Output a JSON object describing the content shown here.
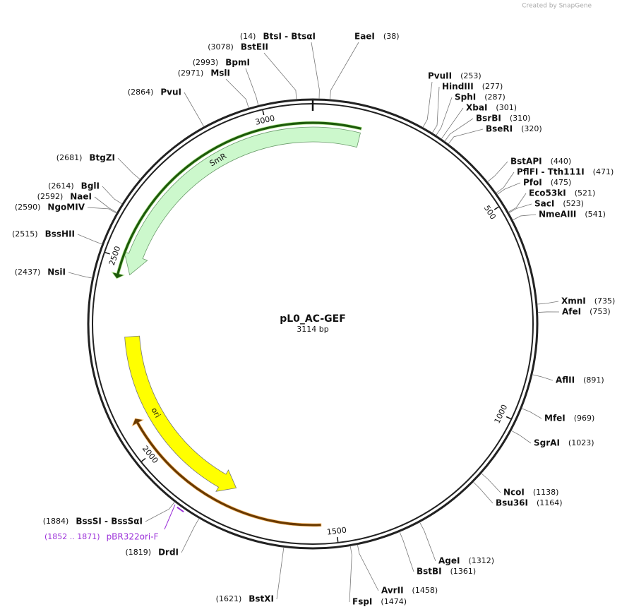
{
  "credit": "Created by SnapGene",
  "map": {
    "title": "pL0_AC-GEF",
    "size": "3114 bp",
    "length": 3114,
    "ticks": [
      500,
      1000,
      1500,
      2000,
      2500,
      3000
    ],
    "features": [
      {
        "name": "SmR"
      },
      {
        "name": "ori"
      }
    ],
    "primer": {
      "range": "(1852 .. 1871)",
      "name": "pBR322ori-F"
    },
    "enzymes": [
      {
        "name": "BtsI - BtsαI",
        "position": "(14)"
      },
      {
        "name": "EaeI",
        "position": "(38)"
      },
      {
        "name": "BstEII",
        "position": "(3078)"
      },
      {
        "name": "BpmI",
        "position": "(2993)"
      },
      {
        "name": "MslI",
        "position": "(2971)"
      },
      {
        "name": "PvuI",
        "position": "(2864)"
      },
      {
        "name": "PvuII",
        "position": "(253)"
      },
      {
        "name": "HindIII",
        "position": "(277)"
      },
      {
        "name": "SphI",
        "position": "(287)"
      },
      {
        "name": "XbaI",
        "position": "(301)"
      },
      {
        "name": "BsrBI",
        "position": "(310)"
      },
      {
        "name": "BseRI",
        "position": "(320)"
      },
      {
        "name": "BstAPI",
        "position": "(440)"
      },
      {
        "name": "PflFI - Tth111I",
        "position": "(471)"
      },
      {
        "name": "PfoI",
        "position": "(475)"
      },
      {
        "name": "Eco53kI",
        "position": "(521)"
      },
      {
        "name": "SacI",
        "position": "(523)"
      },
      {
        "name": "NmeAIII",
        "position": "(541)"
      },
      {
        "name": "XmnI",
        "position": "(735)"
      },
      {
        "name": "AfeI",
        "position": "(753)"
      },
      {
        "name": "AflII",
        "position": "(891)"
      },
      {
        "name": "MfeI",
        "position": "(969)"
      },
      {
        "name": "SgrAI",
        "position": "(1023)"
      },
      {
        "name": "NcoI",
        "position": "(1138)"
      },
      {
        "name": "Bsu36I",
        "position": "(1164)"
      },
      {
        "name": "AgeI",
        "position": "(1312)"
      },
      {
        "name": "BstBI",
        "position": "(1361)"
      },
      {
        "name": "AvrII",
        "position": "(1458)"
      },
      {
        "name": "FspI",
        "position": "(1474)"
      },
      {
        "name": "BstXI",
        "position": "(1621)"
      },
      {
        "name": "DrdI",
        "position": "(1819)"
      },
      {
        "name": "BssSI - BssSαI",
        "position": "(1884)"
      },
      {
        "name": "BtgZI",
        "position": "(2681)"
      },
      {
        "name": "BglI",
        "position": "(2614)"
      },
      {
        "name": "NaeI",
        "position": "(2592)"
      },
      {
        "name": "NgoMIV",
        "position": "(2590)"
      },
      {
        "name": "BssHII",
        "position": "(2515)"
      },
      {
        "name": "NsiI",
        "position": "(2437)"
      }
    ]
  }
}
